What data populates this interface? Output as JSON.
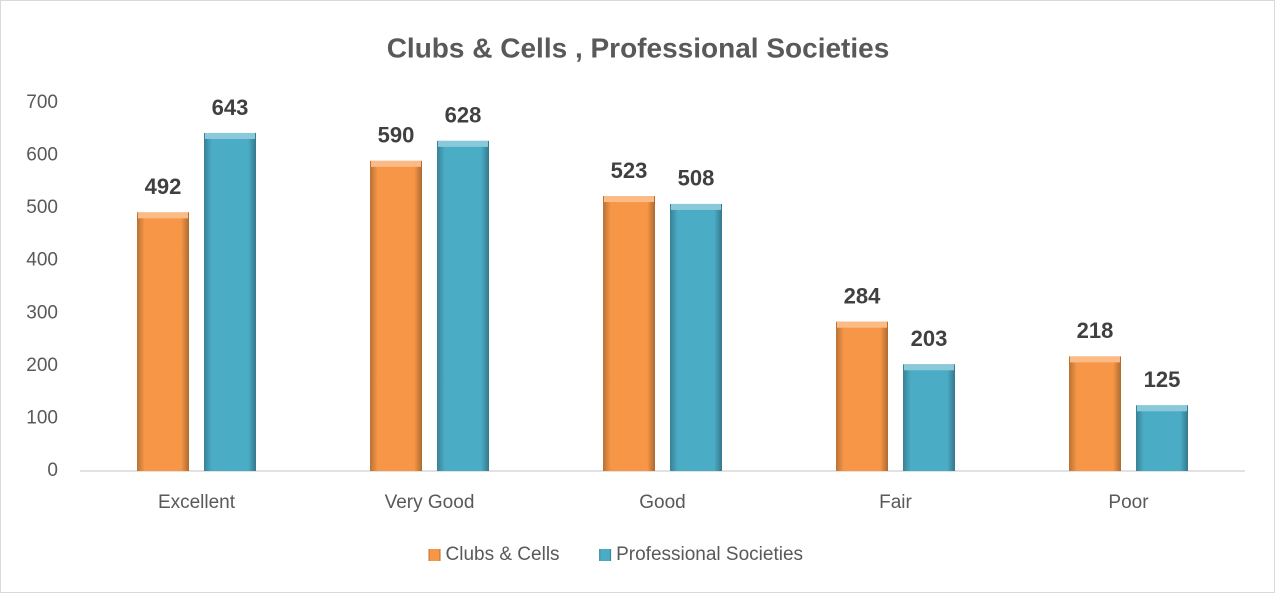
{
  "chart_data": {
    "type": "bar",
    "title": "Clubs & Cells , Professional Societies",
    "categories": [
      "Excellent",
      "Very Good",
      "Good",
      "Fair",
      "Poor"
    ],
    "series": [
      {
        "name": "Clubs & Cells",
        "color": "#f79646",
        "values": [
          492,
          590,
          523,
          284,
          218
        ]
      },
      {
        "name": "Professional Societies",
        "color": "#4bacc6",
        "values": [
          643,
          628,
          508,
          203,
          125
        ]
      }
    ],
    "ylim": [
      0,
      700
    ],
    "yticks": [
      0,
      100,
      200,
      300,
      400,
      500,
      600,
      700
    ],
    "grid": false,
    "legend": "bottom"
  }
}
